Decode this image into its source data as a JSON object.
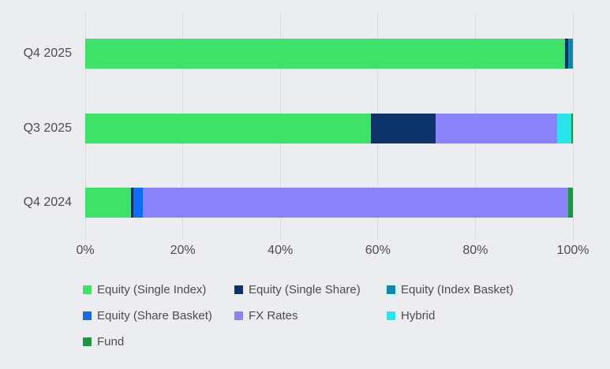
{
  "colors": {
    "background": "#ebedf1",
    "gridline": "#d9dbde",
    "text": "#4c4c4c"
  },
  "chart_data": {
    "type": "bar",
    "variant": "horizontal-stacked",
    "title": "",
    "xlabel": "",
    "ylabel": "",
    "xlim": [
      0,
      100
    ],
    "grid": true,
    "legend_position": "bottom",
    "categories": [
      "Q4 2025",
      "Q3 2025",
      "Q4 2024"
    ],
    "x_ticks": [
      "0%",
      "20%",
      "40%",
      "60%",
      "80%",
      "100%"
    ],
    "series": [
      {
        "name": "Equity (Single Index)",
        "color": "#3fe268",
        "values": [
          98.4,
          58.5,
          9.4
        ]
      },
      {
        "name": "Equity (Single Share)",
        "color": "#0e3368",
        "values": [
          0.7,
          13.3,
          0.5
        ]
      },
      {
        "name": "Equity (Index Basket)",
        "color": "#0e89a8",
        "values": [
          0.9,
          0,
          0
        ]
      },
      {
        "name": "Equity (Share Basket)",
        "color": "#0d6ef5",
        "values": [
          0,
          0,
          1.9
        ]
      },
      {
        "name": "FX Rates",
        "color": "#8a82f8",
        "values": [
          0,
          24.9,
          87.2
        ]
      },
      {
        "name": "Hybrid",
        "color": "#29e4e8",
        "values": [
          0,
          3.0,
          0
        ]
      },
      {
        "name": "Fund",
        "color": "#16993f",
        "values": [
          0,
          0.3,
          1.0
        ]
      }
    ]
  }
}
